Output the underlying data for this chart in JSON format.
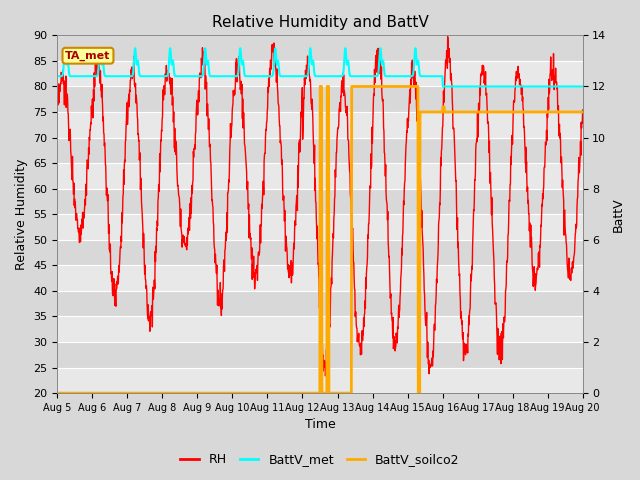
{
  "title": "Relative Humidity and BattV",
  "xlabel": "Time",
  "ylabel_left": "Relative Humidity",
  "ylabel_right": "BattV",
  "ylim_left": [
    20,
    90
  ],
  "ylim_right": [
    0,
    14
  ],
  "yticks_left": [
    20,
    25,
    30,
    35,
    40,
    45,
    50,
    55,
    60,
    65,
    70,
    75,
    80,
    85,
    90
  ],
  "yticks_right": [
    0,
    2,
    4,
    6,
    8,
    10,
    12,
    14
  ],
  "xtick_labels": [
    "Aug 5",
    "Aug 6",
    "Aug 7",
    "Aug 8",
    "Aug 9",
    "Aug 10",
    "Aug 11",
    "Aug 12",
    "Aug 13",
    "Aug 14",
    "Aug 15",
    "Aug 16",
    "Aug 17",
    "Aug 18",
    "Aug 19",
    "Aug 20"
  ],
  "bg_color": "#d8d8d8",
  "plot_bg_alt1": "#e8e8e8",
  "plot_bg_alt2": "#d0d0d0",
  "grid_color": "#ffffff",
  "rh_color": "#ff0000",
  "battv_met_color": "#00ffff",
  "battv_soilco2_color": "#ffaa00",
  "annotation_text": "TA_met",
  "annotation_fg": "#aa0000",
  "annotation_bg": "#ffff99",
  "annotation_border": "#cc8800",
  "legend_labels": [
    "RH",
    "BattV_met",
    "BattV_soilco2"
  ]
}
